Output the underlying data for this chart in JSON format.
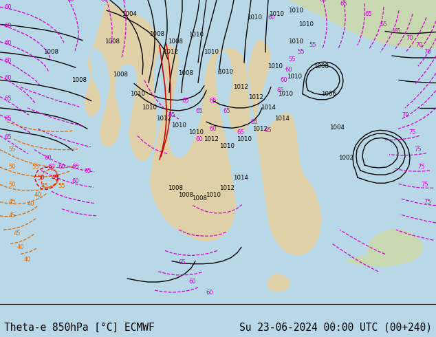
{
  "bottom_left_text": "Theta-e 850hPa [°C] ECMWF",
  "bottom_right_text": "Su 23-06-2024 00:00 UTC (00+240)",
  "ocean_color": "#b8d8e8",
  "land_color_main": "#dfd0a8",
  "land_color_green": "#c8d8b0",
  "land_color_light": "#e8dfc0",
  "fig_width": 6.34,
  "fig_height": 4.9,
  "dpi": 100,
  "text_color": "#000000",
  "font_size": 10.5,
  "bottom_bar_color": "#c8e0ec",
  "separator_color": "#000000"
}
